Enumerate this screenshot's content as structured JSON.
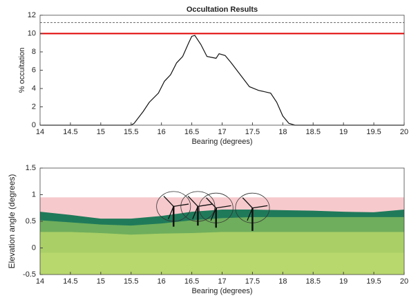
{
  "chart_data": [
    {
      "type": "line",
      "title": "Occultation Results",
      "xlabel": "Bearing (degrees)",
      "ylabel": "% occultation",
      "xlim": [
        14,
        20
      ],
      "xticks": [
        14,
        14.5,
        15,
        15.5,
        16,
        16.5,
        17,
        17.5,
        18,
        18.5,
        19,
        19.5,
        20
      ],
      "ylim": [
        0,
        12
      ],
      "yticks": [
        0,
        2,
        4,
        6,
        8,
        10,
        12
      ],
      "x": [
        14,
        15.5,
        15.55,
        15.7,
        15.8,
        15.95,
        16.05,
        16.15,
        16.25,
        16.35,
        16.45,
        16.5,
        16.55,
        16.65,
        16.75,
        16.9,
        16.95,
        17.05,
        17.15,
        17.3,
        17.45,
        17.6,
        17.8,
        17.9,
        18.0,
        18.1,
        18.2,
        20
      ],
      "series": [
        {
          "color": "#111111",
          "values": [
            0,
            0,
            0.2,
            1.5,
            2.5,
            3.5,
            4.8,
            5.5,
            6.8,
            7.5,
            9,
            9.7,
            9.8,
            8.8,
            7.5,
            7.3,
            7.8,
            7.6,
            6.8,
            5.5,
            4.2,
            3.8,
            3.5,
            2.5,
            1.0,
            0.2,
            0,
            0
          ]
        }
      ],
      "hlines": [
        {
          "value": 10,
          "color": "#e00000",
          "style": "solid"
        },
        {
          "value": 11.2,
          "color": "#666666",
          "style": "dashed"
        }
      ]
    },
    {
      "type": "area",
      "xlabel": "Bearing (degrees)",
      "ylabel": "Elevation angle (degrees)",
      "xlim": [
        14,
        20
      ],
      "xticks": [
        14,
        14.5,
        15,
        15.5,
        16,
        16.5,
        17,
        17.5,
        18,
        18.5,
        19,
        19.5,
        20
      ],
      "ylim": [
        -0.5,
        1.5
      ],
      "yticks": [
        -0.5,
        0,
        0.5,
        1,
        1.5
      ],
      "band": {
        "value": 0.95,
        "color": "#f6c9cc"
      },
      "x": [
        14,
        14.5,
        15,
        15.5,
        16,
        16.5,
        17,
        17.5,
        18,
        18.5,
        19,
        19.5,
        20
      ],
      "series": [
        {
          "color": "#1f7a5a",
          "values": [
            0.68,
            0.62,
            0.55,
            0.55,
            0.6,
            0.68,
            0.72,
            0.72,
            0.71,
            0.7,
            0.68,
            0.67,
            0.72
          ]
        },
        {
          "color": "#6fae5c",
          "values": [
            0.52,
            0.48,
            0.44,
            0.42,
            0.46,
            0.52,
            0.56,
            0.58,
            0.58,
            0.58,
            0.58,
            0.58,
            0.58
          ]
        },
        {
          "color": "#a9cf66",
          "values": [
            0.3,
            0.3,
            0.28,
            0.25,
            0.27,
            0.28,
            0.3,
            0.3,
            0.3,
            0.3,
            0.3,
            0.3,
            0.3
          ]
        }
      ],
      "turbines": [
        {
          "x": 16.2,
          "hub": 0.78,
          "base": 0.4,
          "radius": 0.28
        },
        {
          "x": 16.6,
          "hub": 0.78,
          "base": 0.42,
          "radius": 0.28
        },
        {
          "x": 16.9,
          "hub": 0.75,
          "base": 0.38,
          "radius": 0.28
        },
        {
          "x": 17.5,
          "hub": 0.75,
          "base": 0.32,
          "radius": 0.28
        }
      ]
    }
  ]
}
